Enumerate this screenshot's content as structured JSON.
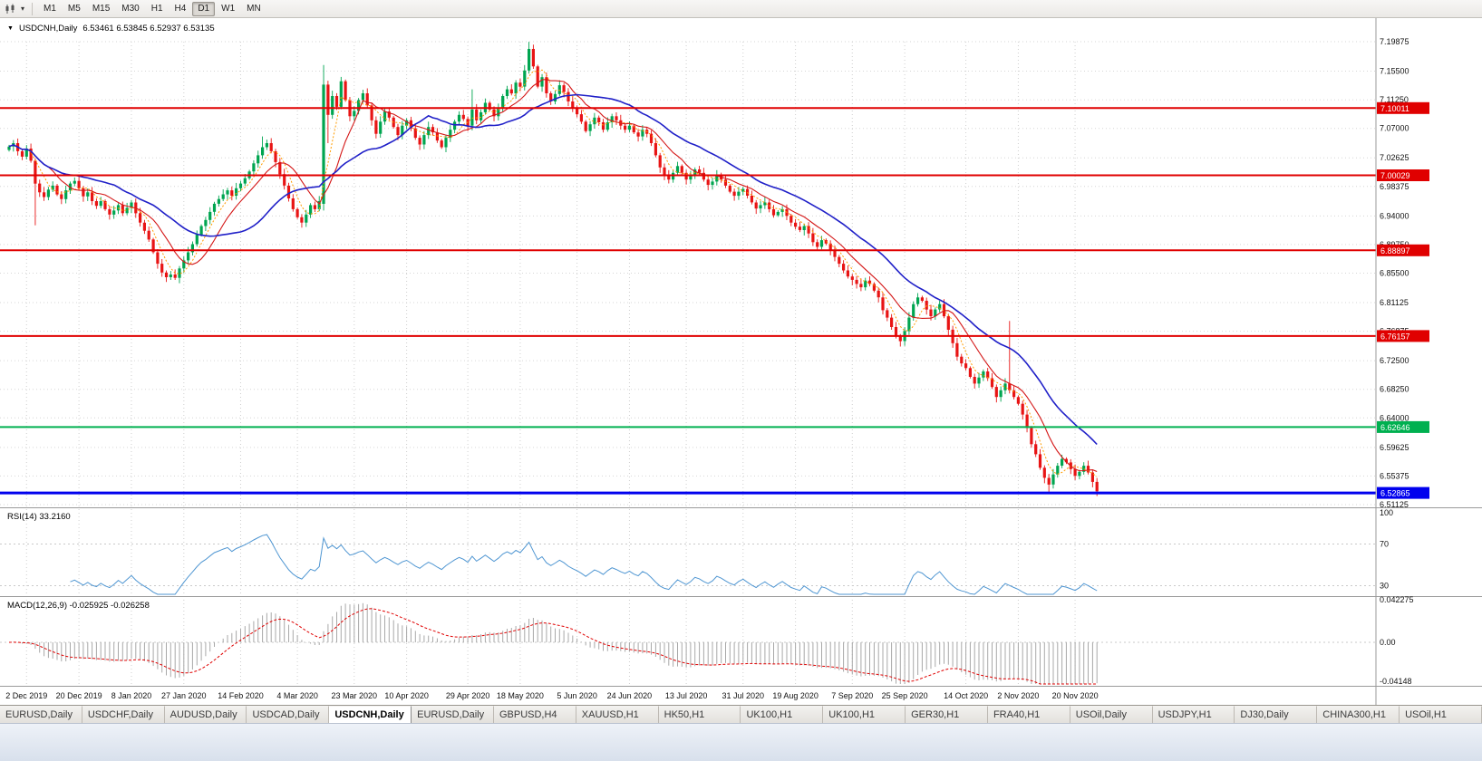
{
  "toolbar": {
    "timeframes": [
      "M1",
      "M5",
      "M15",
      "M30",
      "H1",
      "H4",
      "D1",
      "W1",
      "MN"
    ],
    "active_timeframe": "D1"
  },
  "chart": {
    "title": "USDCNH,Daily",
    "ohlc": "6.53461 6.53845 6.52937 6.53135",
    "open": "6.53461",
    "high": "6.53845",
    "low": "6.52937",
    "close": "6.53135"
  },
  "price_axis": {
    "values": [
      7.19875,
      7.155,
      7.1125,
      7.07,
      7.02625,
      6.98375,
      6.94,
      6.8975,
      6.855,
      6.81125,
      6.76875,
      6.725,
      6.6825,
      6.64,
      6.59625,
      6.55375,
      6.51125
    ],
    "labels": [
      "7.19875",
      "7.15500",
      "7.11250",
      "7.07000",
      "7.02625",
      "6.98375",
      "6.94000",
      "6.89750",
      "6.85500",
      "6.81125",
      "6.76875",
      "6.72500",
      "6.68250",
      "6.64000",
      "6.59625",
      "6.55375",
      "6.51125"
    ]
  },
  "hlines": [
    {
      "price": 7.10011,
      "label": "7.10011",
      "color": "#e00000",
      "width": 2
    },
    {
      "price": 7.00029,
      "label": "7.00029",
      "color": "#e00000",
      "width": 2
    },
    {
      "price": 6.88897,
      "label": "6.88897",
      "color": "#e00000",
      "width": 2
    },
    {
      "price": 6.76157,
      "label": "6.76157",
      "color": "#e00000",
      "width": 2
    },
    {
      "price": 6.62646,
      "label": "6.62646",
      "color": "#00b050",
      "width": 2
    },
    {
      "price": 6.52865,
      "label": "6.52865",
      "color": "#0000ee",
      "width": 3
    }
  ],
  "time_axis": {
    "ticks": [
      {
        "label": "2 Dec 2019",
        "i": 4
      },
      {
        "label": "20 Dec 2019",
        "i": 16
      },
      {
        "label": "8 Jan 2020",
        "i": 28
      },
      {
        "label": "27 Jan 2020",
        "i": 40
      },
      {
        "label": "14 Feb 2020",
        "i": 53
      },
      {
        "label": "4 Mar 2020",
        "i": 66
      },
      {
        "label": "23 Mar 2020",
        "i": 79
      },
      {
        "label": "10 Apr 2020",
        "i": 91
      },
      {
        "label": "29 Apr 2020",
        "i": 105
      },
      {
        "label": "18 May 2020",
        "i": 117
      },
      {
        "label": "5 Jun 2020",
        "i": 130
      },
      {
        "label": "24 Jun 2020",
        "i": 142
      },
      {
        "label": "13 Jul 2020",
        "i": 155
      },
      {
        "label": "31 Jul 2020",
        "i": 168
      },
      {
        "label": "19 Aug 2020",
        "i": 180
      },
      {
        "label": "7 Sep 2020",
        "i": 193
      },
      {
        "label": "25 Sep 2020",
        "i": 205
      },
      {
        "label": "14 Oct 2020",
        "i": 219
      },
      {
        "label": "2 Nov 2020",
        "i": 231
      },
      {
        "label": "20 Nov 2020",
        "i": 244
      }
    ]
  },
  "rsi": {
    "label": "RSI(14) 33.2160",
    "period": 14,
    "value": 33.216,
    "color": "#4f96d2",
    "axis": [
      100,
      70,
      30
    ],
    "levels": [
      70,
      30
    ]
  },
  "macd": {
    "label": "MACD(12,26,9) -0.025925 -0.026258",
    "fast": 12,
    "slow": 26,
    "signal": 9,
    "main_value": -0.025925,
    "signal_value": -0.026258,
    "axis": [
      {
        "v": 0.042275,
        "label": "0.042275"
      },
      {
        "v": 0,
        "label": "0.00"
      },
      {
        "v": -0.04148,
        "label": "-0.04148"
      }
    ]
  },
  "chart_data": {
    "type": "candlestick",
    "symbol": "USDCNH",
    "timeframe": "Daily",
    "x_range": [
      "2 Dec 2019",
      "20 Nov 2020"
    ],
    "y_range": [
      6.51125,
      7.19875
    ],
    "colors": {
      "up": "#00a550",
      "down": "#e81414"
    },
    "closes": [
      7.043,
      7.048,
      7.036,
      7.028,
      7.04,
      7.022,
      6.988,
      6.975,
      6.968,
      6.979,
      6.985,
      6.972,
      6.965,
      6.978,
      6.988,
      6.992,
      6.981,
      6.969,
      6.975,
      6.962,
      6.955,
      6.962,
      6.95,
      6.942,
      6.948,
      6.956,
      6.944,
      6.952,
      6.96,
      6.944,
      6.93,
      6.918,
      6.905,
      6.886,
      6.869,
      6.856,
      6.849,
      6.853,
      6.848,
      6.862,
      6.874,
      6.886,
      6.898,
      6.912,
      6.925,
      6.934,
      6.946,
      6.958,
      6.965,
      6.972,
      6.978,
      6.97,
      6.981,
      6.988,
      6.996,
      7.006,
      7.018,
      7.03,
      7.042,
      7.048,
      7.036,
      7.02,
      7.002,
      6.985,
      6.966,
      6.95,
      6.938,
      6.93,
      6.942,
      6.956,
      6.95,
      6.962,
      7.135,
      7.09,
      7.118,
      7.102,
      7.14,
      7.112,
      7.088,
      7.096,
      7.112,
      7.122,
      7.104,
      7.082,
      7.062,
      7.08,
      7.095,
      7.086,
      7.072,
      7.06,
      7.074,
      7.082,
      7.07,
      7.056,
      7.046,
      7.06,
      7.072,
      7.064,
      7.052,
      7.042,
      7.056,
      7.068,
      7.08,
      7.09,
      7.084,
      7.074,
      7.098,
      7.082,
      7.094,
      7.108,
      7.098,
      7.088,
      7.1,
      7.118,
      7.128,
      7.122,
      7.138,
      7.132,
      7.156,
      7.188,
      7.162,
      7.132,
      7.146,
      7.122,
      7.11,
      7.121,
      7.134,
      7.124,
      7.11,
      7.1,
      7.091,
      7.08,
      7.066,
      7.076,
      7.086,
      7.079,
      7.068,
      7.079,
      7.088,
      7.082,
      7.074,
      7.068,
      7.074,
      7.064,
      7.058,
      7.068,
      7.062,
      7.048,
      7.03,
      7.012,
      7.0,
      6.994,
      7.004,
      7.014,
      7.004,
      6.994,
      7.0,
      7.009,
      7.004,
      6.994,
      6.986,
      6.991,
      7.0,
      6.994,
      6.985,
      6.976,
      6.97,
      6.976,
      6.98,
      6.97,
      6.96,
      6.951,
      6.956,
      6.96,
      6.95,
      6.941,
      6.946,
      6.95,
      6.94,
      6.93,
      6.924,
      6.919,
      6.925,
      6.914,
      6.901,
      6.894,
      6.904,
      6.899,
      6.889,
      6.879,
      6.869,
      6.859,
      6.85,
      6.845,
      6.839,
      6.834,
      6.844,
      6.839,
      6.829,
      6.819,
      6.8,
      6.789,
      6.775,
      6.761,
      6.754,
      6.769,
      6.789,
      6.809,
      6.819,
      6.814,
      6.801,
      6.791,
      6.801,
      6.809,
      6.791,
      6.771,
      6.751,
      6.731,
      6.721,
      6.714,
      6.701,
      6.691,
      6.7,
      6.709,
      6.699,
      6.686,
      6.671,
      6.681,
      6.691,
      6.681,
      6.671,
      6.661,
      6.645,
      6.625,
      6.601,
      6.586,
      6.566,
      6.551,
      6.541,
      6.556,
      6.569,
      6.579,
      6.574,
      6.564,
      6.554,
      6.56,
      6.569,
      6.559,
      6.545,
      6.531
    ],
    "special_candles": {
      "0": {
        "open": 7.038
      },
      "6": {
        "low": 6.926
      },
      "36": {
        "low": 6.842
      },
      "58": {
        "high": 7.058
      },
      "72": {
        "open": 6.958,
        "high": 7.164,
        "low": 6.948
      },
      "73": {
        "low": 7.048
      },
      "106": {
        "high": 7.128
      },
      "119": {
        "high": 7.1985
      },
      "229": {
        "high": 6.784
      },
      "238": {
        "low": 6.529
      },
      "249": {
        "low": 6.524
      }
    },
    "ma": [
      {
        "name": "ma-fast-orange",
        "period": 5,
        "color": "#ff9c00",
        "width": 1,
        "dash": "2,2"
      },
      {
        "name": "ma-medium-red",
        "period": 10,
        "color": "#d41616",
        "width": 1.1,
        "dash": ""
      },
      {
        "name": "ma-slow-blue",
        "period": 25,
        "color": "#2020c8",
        "width": 1.6,
        "dash": ""
      }
    ]
  },
  "bottom_tabs": {
    "active_index": 4,
    "tabs": [
      {
        "label": "EURUSD,Daily"
      },
      {
        "label": "USDCHF,Daily"
      },
      {
        "label": "AUDUSD,Daily"
      },
      {
        "label": "USDCAD,Daily"
      },
      {
        "label": "USDCNH,Daily"
      },
      {
        "label": "EURUSD,Daily"
      },
      {
        "label": "GBPUSD,H4"
      },
      {
        "label": "XAUUSD,H1"
      },
      {
        "label": "HK50,H1"
      },
      {
        "label": "UK100,H1"
      },
      {
        "label": "UK100,H1"
      },
      {
        "label": "GER30,H1"
      },
      {
        "label": "FRA40,H1"
      },
      {
        "label": "USOil,Daily"
      },
      {
        "label": "USDJPY,H1"
      },
      {
        "label": "DJ30,Daily"
      },
      {
        "label": "CHINA300,H1"
      },
      {
        "label": "USOil,H1"
      }
    ]
  }
}
